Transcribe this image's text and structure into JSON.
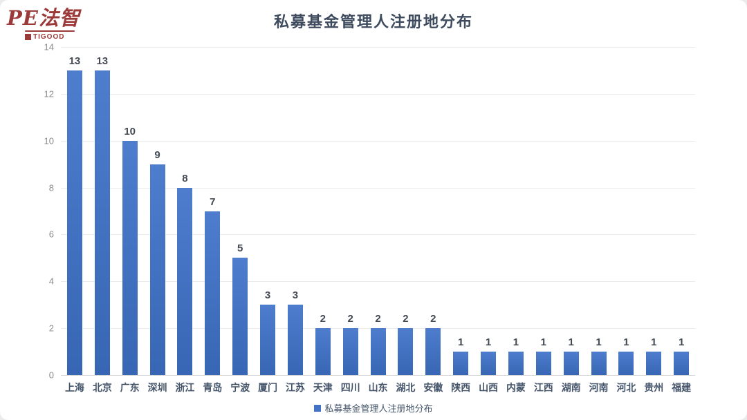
{
  "logo": {
    "brand": "PE法智",
    "sub": "TIGOOD"
  },
  "title": "私募基金管理人注册地分布",
  "legend": {
    "label": "私募基金管理人注册地分布",
    "marker_color": "#4472c4"
  },
  "colors": {
    "bar_top": "#4e7dce",
    "bar_bottom": "#3766b4",
    "bar_flat": "#4472c4",
    "title_text": "#3e4a5e",
    "x_labels": "#44546a",
    "y_labels": "#8c8c8c",
    "value_labels": "#434a54",
    "gridline": "#ececec",
    "baseline": "#d9d9d9",
    "logo_red": "#9c3a3a"
  },
  "chart_data": {
    "type": "bar",
    "title": "私募基金管理人注册地分布",
    "categories": [
      "上海",
      "北京",
      "广东",
      "深圳",
      "浙江",
      "青岛",
      "宁波",
      "厦门",
      "江苏",
      "天津",
      "四川",
      "山东",
      "湖北",
      "安徽",
      "陕西",
      "山西",
      "内蒙",
      "江西",
      "湖南",
      "河南",
      "河北",
      "贵州",
      "福建"
    ],
    "values": [
      13,
      13,
      10,
      9,
      8,
      7,
      5,
      3,
      3,
      2,
      2,
      2,
      2,
      2,
      1,
      1,
      1,
      1,
      1,
      1,
      1,
      1,
      1
    ],
    "xlabel": "",
    "ylabel": "",
    "ylim": [
      0,
      14
    ],
    "yticks": [
      0,
      2,
      4,
      6,
      8,
      10,
      12,
      14
    ],
    "grid": true,
    "data_labels": true,
    "legend_entries": [
      "私募基金管理人注册地分布"
    ],
    "legend_position": "bottom"
  }
}
